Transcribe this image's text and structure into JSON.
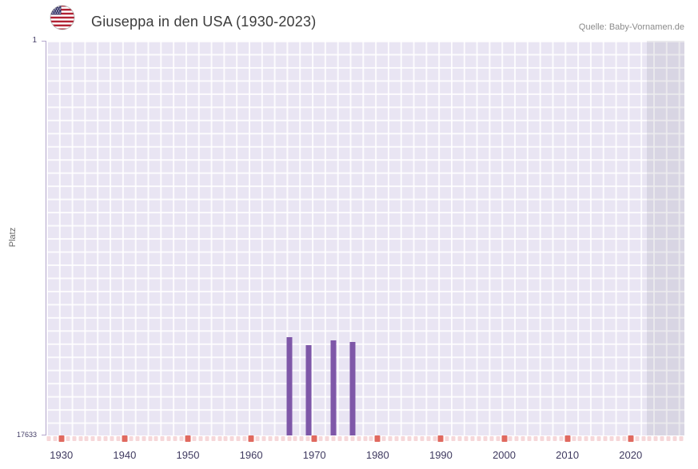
{
  "header": {
    "title": "Giuseppa in den USA (1930-2023)",
    "source": "Quelle: Baby-Vornamen.de"
  },
  "colors": {
    "bar": "#7e57a8",
    "plot_bg": "#e9e5f3",
    "grid": "#ffffff",
    "axis_line": "#b3a6cc",
    "tick_light": "#f6d7d9",
    "tick_dark": "#e0695f",
    "overlay": "rgba(110,105,125,0.13)",
    "x_label": "#3f3a60",
    "y_label": "#666666",
    "title": "#3c3c3c",
    "source": "#8b8b8b"
  },
  "chart_data": {
    "type": "bar",
    "title": "Giuseppa in den USA (1930-2023)",
    "xlabel": "",
    "ylabel": "Platz",
    "y_axis": {
      "min": 1,
      "max": 17633,
      "top_label": "1",
      "bottom_label": "17633",
      "inverted": true
    },
    "x_axis": {
      "min": 1927.5,
      "max": 2028.5
    },
    "x_ticks": [
      1930,
      1940,
      1950,
      1960,
      1970,
      1980,
      1990,
      2000,
      2010,
      2020
    ],
    "points": [
      {
        "year": 1966,
        "rank": 13250
      },
      {
        "year": 1969,
        "rank": 13600
      },
      {
        "year": 1973,
        "rank": 13400
      },
      {
        "year": 1976,
        "rank": 13450
      }
    ],
    "year_ticks": {
      "start": 1928,
      "end": 2028,
      "decade_interval": 10
    },
    "shaded_from": 2022.5,
    "grid": true,
    "legend": false
  }
}
